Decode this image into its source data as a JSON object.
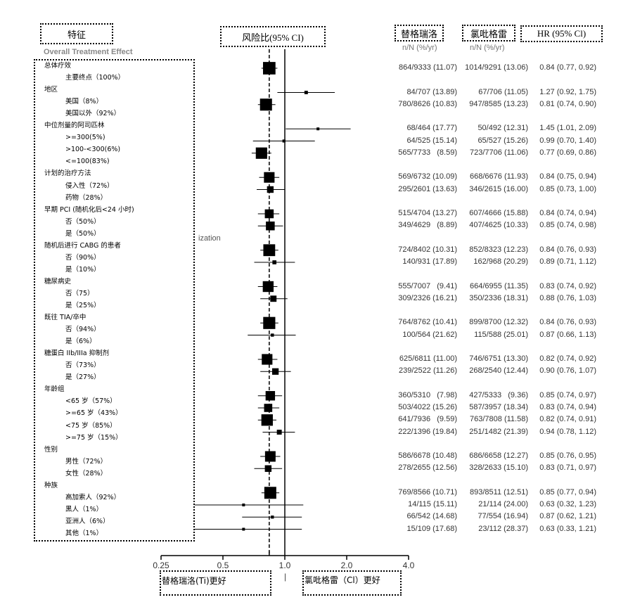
{
  "headers": {
    "feature": "特征",
    "hazard_ratio": "风险比(95% CI)",
    "ticagrelor": "替格瑞洛",
    "clopidogrel": "氯吡格雷",
    "hr_ci": "HR (95% Cl)",
    "subheader_ti": "n/N (%/yr)",
    "subheader_cl": "n/N (%/yr)",
    "overall_hidden": "Overall Treatment Effect",
    "hidden_fragment": "ization"
  },
  "footer": {
    "ti_better": "替格瑞洛(Ti)更好",
    "cl_better": "氯吡格雷（Cl）更好",
    "center_mark": "|"
  },
  "labels": [
    {
      "text": "总体疗效",
      "indent": 0
    },
    {
      "text": "主要终点（100%）",
      "indent": 1
    },
    {
      "text": "地区",
      "indent": 0
    },
    {
      "text": "美国（8%）",
      "indent": 1
    },
    {
      "text": "美国以外（92%）",
      "indent": 1
    },
    {
      "text": "中位剂量的阿司匹林",
      "indent": 0
    },
    {
      "text": ">=300(5%)",
      "indent": 1
    },
    {
      "text": ">100-<300(6%)",
      "indent": 1
    },
    {
      "text": "<=100(83%)",
      "indent": 1
    },
    {
      "text": "计划的治疗方法",
      "indent": 0
    },
    {
      "text": "侵入性（72%）",
      "indent": 1
    },
    {
      "text": "药物（28%）",
      "indent": 1
    },
    {
      "text": "早期 PCI (随机化后<24 小时)",
      "indent": 0
    },
    {
      "text": "否（50%）",
      "indent": 1
    },
    {
      "text": "是（50%）",
      "indent": 1
    },
    {
      "text": "随机后进行 CABG 的患者",
      "indent": 0
    },
    {
      "text": "否（90%）",
      "indent": 1
    },
    {
      "text": "是（10%）",
      "indent": 1
    },
    {
      "text": "糖尿病史",
      "indent": 0
    },
    {
      "text": "否（75）",
      "indent": 1
    },
    {
      "text": "是（25%）",
      "indent": 1
    },
    {
      "text": "既往 TIA/卒中",
      "indent": 0
    },
    {
      "text": "否（94%）",
      "indent": 1
    },
    {
      "text": "是（6%）",
      "indent": 1
    },
    {
      "text": "糖蛋白 IIb/IIIa 抑制剂",
      "indent": 0
    },
    {
      "text": "否（73%）",
      "indent": 1
    },
    {
      "text": "是（27%）",
      "indent": 1
    },
    {
      "text": "年龄组",
      "indent": 0
    },
    {
      "text": "<65 岁（57%）",
      "indent": 1
    },
    {
      "text": ">=65 岁（43%）",
      "indent": 1
    },
    {
      "text": "<75 岁（85%）",
      "indent": 1
    },
    {
      "text": ">=75 岁（15%）",
      "indent": 1
    },
    {
      "text": "性别",
      "indent": 0
    },
    {
      "text": "男性（72%）",
      "indent": 1
    },
    {
      "text": "女性（28%）",
      "indent": 1
    },
    {
      "text": "种族",
      "indent": 0
    },
    {
      "text": "高加索人（92%）",
      "indent": 1
    },
    {
      "text": "黑人（1%）",
      "indent": 1
    },
    {
      "text": "亚洲人（6%）",
      "indent": 1
    },
    {
      "text": "其他（1%）",
      "indent": 1
    }
  ],
  "chart_data": {
    "type": "forest",
    "x_scale": "log",
    "xlim": [
      0.25,
      4.0
    ],
    "x_ticks": [
      "0.25",
      "0.5",
      "1.0",
      "2.0",
      "4.0"
    ],
    "reference_line": 1.0,
    "overall_line": 0.84,
    "rows": [
      {
        "ti": "864/9333 (11.07)",
        "cl": "1014/9291 (13.06)",
        "hr": "0.84 (0.77, 0.92)"
      },
      {
        "ti": "84/707 (13.89)",
        "cl": "67/706 (11.05)",
        "hr": "1.27 (0.92, 1.75)"
      },
      {
        "ti": "780/8626 (10.83)",
        "cl": "947/8585 (13.23)",
        "hr": "0.81 (0.74, 0.90)"
      },
      {
        "ti": "68/464 (17.77)",
        "cl": "50/492 (12.31)",
        "hr": "1.45 (1.01, 2.09)"
      },
      {
        "ti": "64/525 (15.14)",
        "cl": "65/527 (15.26)",
        "hr": "0.99 (0.70, 1.40)"
      },
      {
        "ti": "565/7733   (8.59)",
        "cl": "723/7706 (11.06)",
        "hr": "0.77 (0.69, 0.86)"
      },
      {
        "ti": "569/6732 (10.09)",
        "cl": "668/6676 (11.93)",
        "hr": "0.84 (0.75, 0.94)"
      },
      {
        "ti": "295/2601 (13.63)",
        "cl": "346/2615 (16.00)",
        "hr": "0.85 (0.73, 1.00)"
      },
      {
        "ti": "515/4704 (13.27)",
        "cl": "607/4666 (15.88)",
        "hr": "0.84 (0.74, 0.94)"
      },
      {
        "ti": "349/4629   (8.89)",
        "cl": "407/4625 (10.33)",
        "hr": "0.85 (0.74, 0.98)"
      },
      {
        "ti": "724/8402 (10.31)",
        "cl": "852/8323 (12.23)",
        "hr": "0.84 (0.76, 0.93)"
      },
      {
        "ti": "140/931 (17.89)",
        "cl": "162/968 (20.29)",
        "hr": "0.89 (0.71, 1.12)"
      },
      {
        "ti": "555/7007   (9.41)",
        "cl": "664/6955 (11.35)",
        "hr": "0.83 (0.74, 0.92)"
      },
      {
        "ti": "309/2326 (16.21)",
        "cl": "350/2336 (18.31)",
        "hr": "0.88 (0.76, 1.03)"
      },
      {
        "ti": "764/8762 (10.41)",
        "cl": "899/8700 (12.32)",
        "hr": "0.84 (0.76, 0.93)"
      },
      {
        "ti": "100/564 (21.62)",
        "cl": "115/588 (25.01)",
        "hr": "0.87 (0.66, 1.13)"
      },
      {
        "ti": "625/6811 (11.00)",
        "cl": "746/6751 (13.30)",
        "hr": "0.82 (0.74, 0.92)"
      },
      {
        "ti": "239/2522 (11.26)",
        "cl": "268/2540 (12.44)",
        "hr": "0.90 (0.76, 1.07)"
      },
      {
        "ti": "360/5310   (7.98)",
        "cl": "427/5333   (9.36)",
        "hr": "0.85 (0.74, 0.97)"
      },
      {
        "ti": "503/4022 (15.26)",
        "cl": "587/3957 (18.34)",
        "hr": "0.83 (0.74, 0.94)"
      },
      {
        "ti": "641/7936   (9.59)",
        "cl": "763/7808 (11.58)",
        "hr": "0.82 (0.74, 0.91)"
      },
      {
        "ti": "222/1396 (19.84)",
        "cl": "251/1482 (21.39)",
        "hr": "0.94 (0.78, 1.12)"
      },
      {
        "ti": "586/6678 (10.48)",
        "cl": "686/6658 (12.27)",
        "hr": "0.85 (0.76, 0.95)"
      },
      {
        "ti": "278/2655 (12.56)",
        "cl": "328/2633 (15.10)",
        "hr": "0.83 (0.71, 0.97)"
      },
      {
        "ti": "769/8566 (10.71)",
        "cl": "893/8511 (12.51)",
        "hr": "0.85 (0.77, 0.94)"
      },
      {
        "ti": "14/115 (15.11)",
        "cl": "21/114 (24.00)",
        "hr": "0.63 (0.32, 1.23)"
      },
      {
        "ti": "66/542 (14.68)",
        "cl": "77/554 (16.94)",
        "hr": "0.87 (0.62, 1.21)"
      },
      {
        "ti": "15/109 (17.68)",
        "cl": "23/112 (28.37)",
        "hr": "0.63 (0.33, 1.21)"
      }
    ]
  }
}
